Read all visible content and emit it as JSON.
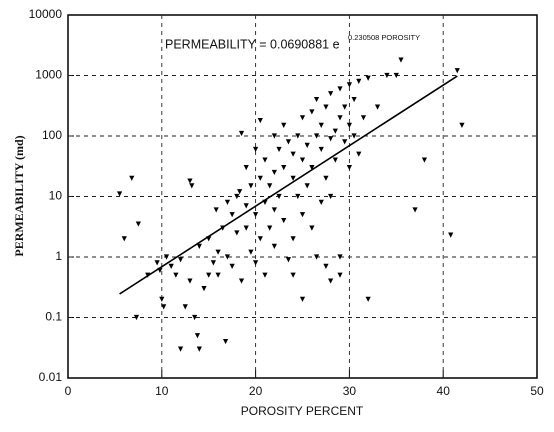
{
  "chart_data": {
    "type": "scatter",
    "xlabel": "POROSITY PERCENT",
    "ylabel": "PERMEABILITY (md)",
    "annotation": "PERMEABILITY = 0.0690881 e",
    "annotation_exponent": "0.230508 POROSITY",
    "xlim": [
      0,
      50
    ],
    "xticks": [
      0,
      10,
      20,
      30,
      40,
      50
    ],
    "ylim": [
      0.01,
      10000
    ],
    "yticks": [
      0.01,
      0.1,
      1,
      10,
      100,
      1000,
      10000
    ],
    "ylog": true,
    "grid": true,
    "series": [
      {
        "type": "scatter",
        "color": "#000000",
        "x": [
          5.5,
          6,
          6.8,
          7.5,
          7.3,
          8.5,
          9.5,
          9.8,
          10,
          10.2,
          10.5,
          11,
          11.5,
          12,
          12,
          12.5,
          13,
          13.2,
          13,
          13.5,
          13.8,
          14,
          14,
          14.5,
          15,
          15,
          15.5,
          15.8,
          16,
          16,
          16.5,
          16.8,
          17,
          17,
          17.5,
          17.5,
          18,
          18,
          18.3,
          18.5,
          18.5,
          19,
          19,
          19,
          19.5,
          19.5,
          20,
          20,
          20,
          20.5,
          20.5,
          20.5,
          21,
          21,
          21,
          21.5,
          21.5,
          22,
          22,
          22,
          22,
          22.5,
          22.5,
          23,
          23,
          23,
          23.5,
          23.5,
          24,
          24,
          24,
          24,
          24.5,
          24.5,
          25,
          25,
          25,
          25,
          25.5,
          25.5,
          26,
          26,
          26,
          26.5,
          26.5,
          26.5,
          27,
          27,
          27,
          27.5,
          27.5,
          27.5,
          28,
          28,
          28,
          28,
          28.5,
          28.5,
          29,
          29,
          29,
          29,
          29.5,
          29.5,
          30,
          30,
          30,
          30.5,
          30.5,
          31,
          31,
          31.5,
          32,
          32,
          33,
          34,
          35,
          35.5,
          37,
          38,
          40.8,
          41.5,
          42
        ],
        "values": [
          11,
          2,
          20,
          3.5,
          0.1,
          0.5,
          0.8,
          0.6,
          0.2,
          0.15,
          1,
          0.7,
          0.5,
          0.9,
          0.03,
          0.15,
          18,
          15,
          0.4,
          0.1,
          0.05,
          0.03,
          1.5,
          0.3,
          0.5,
          2,
          0.8,
          6,
          0.5,
          1.2,
          3,
          0.04,
          8,
          1,
          0.7,
          5,
          10,
          2.5,
          12,
          110,
          0.4,
          7,
          30,
          3,
          15,
          1.2,
          5,
          0.8,
          60,
          180,
          20,
          2,
          8,
          0.5,
          40,
          15,
          3,
          100,
          25,
          1.5,
          6,
          60,
          10,
          30,
          4,
          150,
          80,
          0.9,
          20,
          50,
          2,
          0.5,
          100,
          10,
          200,
          40,
          0.2,
          5,
          70,
          15,
          250,
          30,
          3,
          100,
          1,
          400,
          60,
          8,
          150,
          300,
          0.7,
          20,
          500,
          90,
          0.4,
          10,
          120,
          40,
          600,
          200,
          1,
          0.5,
          80,
          300,
          150,
          700,
          30,
          400,
          100,
          800,
          50,
          200,
          0.2,
          900,
          300,
          1000,
          1000,
          1800,
          6,
          40,
          2.3,
          1200,
          150
        ]
      },
      {
        "type": "line",
        "color": "#000000",
        "x": [
          5.5,
          41.5
        ],
        "values": [
          0.245,
          980
        ]
      }
    ]
  }
}
